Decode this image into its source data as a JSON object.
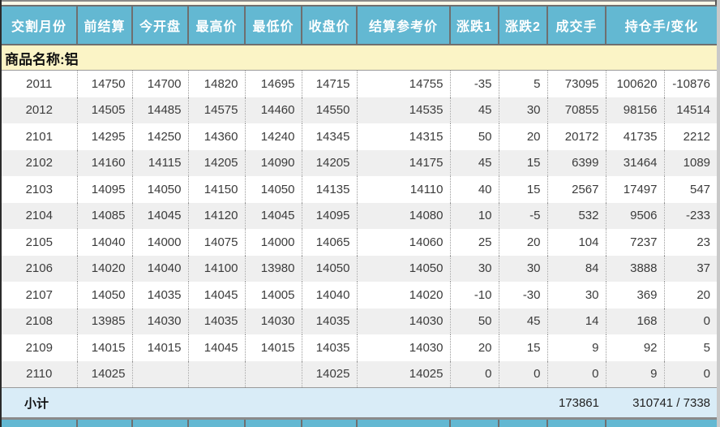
{
  "table": {
    "commodity_label": "商品名称:铝",
    "columns": [
      "交割月份",
      "前结算",
      "今开盘",
      "最高价",
      "最低价",
      "收盘价",
      "结算参考价",
      "涨跌1",
      "涨跌2",
      "成交手",
      "持仓手/变化"
    ],
    "rows": [
      [
        "2011",
        "14750",
        "14700",
        "14820",
        "14695",
        "14715",
        "14755",
        "-35",
        "5",
        "73095",
        "100620",
        "-10876"
      ],
      [
        "2012",
        "14505",
        "14485",
        "14575",
        "14460",
        "14550",
        "14535",
        "45",
        "30",
        "70855",
        "98156",
        "14514"
      ],
      [
        "2101",
        "14295",
        "14250",
        "14360",
        "14240",
        "14345",
        "14315",
        "50",
        "20",
        "20172",
        "41735",
        "2212"
      ],
      [
        "2102",
        "14160",
        "14115",
        "14205",
        "14090",
        "14205",
        "14175",
        "45",
        "15",
        "6399",
        "31464",
        "1089"
      ],
      [
        "2103",
        "14095",
        "14050",
        "14150",
        "14050",
        "14135",
        "14110",
        "40",
        "15",
        "2567",
        "17497",
        "547"
      ],
      [
        "2104",
        "14085",
        "14045",
        "14120",
        "14045",
        "14095",
        "14080",
        "10",
        "-5",
        "532",
        "9506",
        "-233"
      ],
      [
        "2105",
        "14040",
        "14000",
        "14075",
        "14000",
        "14065",
        "14060",
        "25",
        "20",
        "104",
        "7237",
        "23"
      ],
      [
        "2106",
        "14020",
        "14040",
        "14100",
        "13980",
        "14050",
        "14050",
        "30",
        "30",
        "84",
        "3888",
        "37"
      ],
      [
        "2107",
        "14050",
        "14035",
        "14045",
        "14005",
        "14040",
        "14020",
        "-10",
        "-30",
        "30",
        "369",
        "20"
      ],
      [
        "2108",
        "13985",
        "14030",
        "14035",
        "14030",
        "14035",
        "14030",
        "50",
        "45",
        "14",
        "168",
        "0"
      ],
      [
        "2109",
        "14015",
        "14015",
        "14045",
        "14015",
        "14035",
        "14030",
        "20",
        "15",
        "9",
        "92",
        "5"
      ],
      [
        "2110",
        "14025",
        "",
        "",
        "",
        "14025",
        "14025",
        "0",
        "0",
        "0",
        "9",
        "0"
      ]
    ],
    "subtotal": {
      "label": "小计",
      "volume_total": "173861",
      "open_interest_total": "310741 / 7338"
    }
  },
  "colors": {
    "header_bg": "#63b8d2",
    "header_text": "#ffffff",
    "commodity_band_bg": "#fbf4c6",
    "row_bg": "#ffffff",
    "row_alt_bg": "#efefef",
    "subtotal_bg": "#d9ecf7",
    "grid_dark": "#6f6f6f",
    "grid_dotted": "#9a9a9a",
    "data_text": "#3c3c3c"
  }
}
